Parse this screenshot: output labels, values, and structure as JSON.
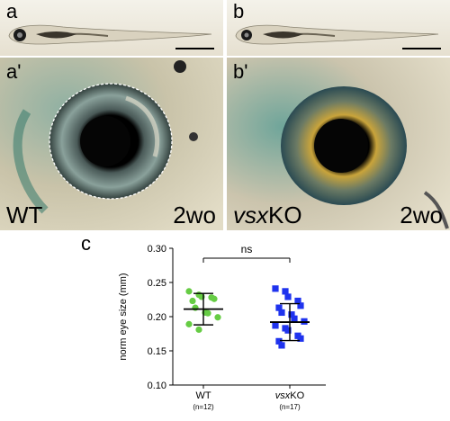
{
  "panels": {
    "a": {
      "letter": "a"
    },
    "b": {
      "letter": "b"
    },
    "a_prime": {
      "letter": "a'",
      "genotype": "WT",
      "age": "2wo"
    },
    "b_prime": {
      "letter": "b'",
      "genotype_italic": "vsx",
      "genotype_rest": "KO",
      "age": "2wo"
    },
    "c": {
      "letter": "c"
    }
  },
  "chart_data": {
    "type": "scatter",
    "ylabel": "norm eye size (mm)",
    "ylim": [
      0.1,
      0.3
    ],
    "yticks": [
      "0.10",
      "0.15",
      "0.20",
      "0.25",
      "0.30"
    ],
    "significance": "ns",
    "groups": [
      {
        "name": "WT",
        "n_label": "(n=12)",
        "color": "#66cc44",
        "marker": "circle",
        "mean": 0.211,
        "sd_low": 0.188,
        "sd_high": 0.234,
        "values": [
          0.237,
          0.232,
          0.229,
          0.228,
          0.226,
          0.223,
          0.213,
          0.206,
          0.205,
          0.199,
          0.189,
          0.181
        ]
      },
      {
        "name_italic": "vsx",
        "name_rest": "KO",
        "n_label": "(n=17)",
        "color": "#1f33ee",
        "marker": "square",
        "mean": 0.192,
        "sd_low": 0.165,
        "sd_high": 0.219,
        "values": [
          0.241,
          0.237,
          0.229,
          0.223,
          0.216,
          0.213,
          0.206,
          0.203,
          0.197,
          0.193,
          0.187,
          0.183,
          0.18,
          0.172,
          0.168,
          0.164,
          0.158
        ]
      }
    ]
  }
}
